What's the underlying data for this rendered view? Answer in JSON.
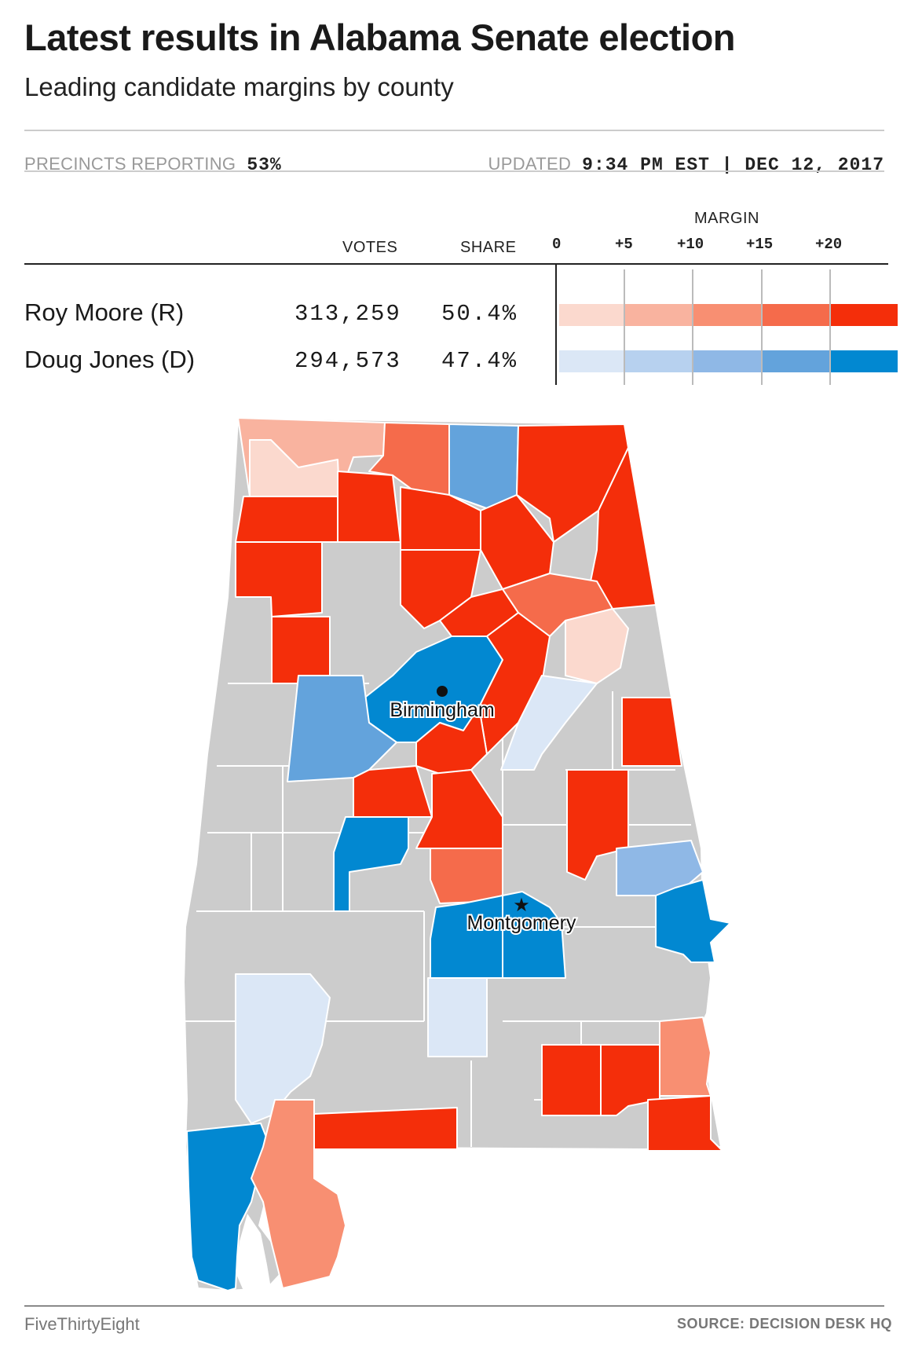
{
  "header": {
    "title": "Latest results in Alabama Senate election",
    "subtitle": "Leading candidate margins by county"
  },
  "status": {
    "precincts_label": "PRECINCTS REPORTING",
    "precincts_value": "53%",
    "updated_label": "UPDATED",
    "updated_value": "9:34 PM EST | DEC 12, 2017"
  },
  "results": {
    "col_votes": "VOTES",
    "col_share": "SHARE",
    "col_margin": "MARGIN",
    "margin_ticks": [
      "0",
      "+5",
      "+10",
      "+15",
      "+20"
    ],
    "candidates": [
      {
        "name": "Roy Moore (R)",
        "votes": "313,259",
        "share": "50.4%",
        "scale_colors": [
          "#fbd9ce",
          "#f9b39f",
          "#f88f72",
          "#f56b4b",
          "#f42e0a"
        ]
      },
      {
        "name": "Doug Jones (D)",
        "votes": "294,573",
        "share": "47.4%",
        "scale_colors": [
          "#dbe7f6",
          "#b7d1ef",
          "#8fb8e6",
          "#63a3dc",
          "#0288d1"
        ]
      }
    ]
  },
  "map": {
    "labels": {
      "birmingham": "Birmingham",
      "montgomery": "Montgomery"
    },
    "colors": {
      "no_results": "#cccccc",
      "county_border": "#ffffff"
    }
  },
  "footer": {
    "brand": "FiveThirtyEight",
    "source": "SOURCE: DECISION DESK HQ"
  }
}
